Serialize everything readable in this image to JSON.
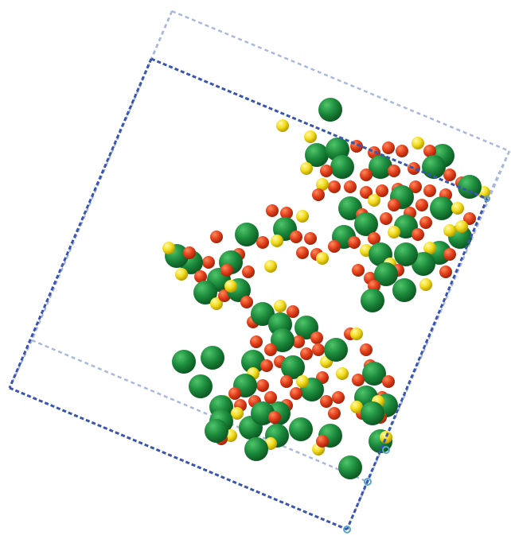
{
  "viewer": {
    "background": "#ffffff",
    "cell_edge_color_front": "#3a55b0",
    "cell_edge_color_back": "#a9b8dc",
    "cell_corner_marker_color": "#5aa6cf"
  },
  "atom_species": [
    {
      "name": "large-green",
      "color": "#1c8a3c",
      "shade": "#0d5a23"
    },
    {
      "name": "small-red",
      "color": "#e2401c",
      "shade": "#a32409"
    },
    {
      "name": "small-yellow",
      "color": "#f2dc1a",
      "shade": "#b89c00"
    }
  ]
}
